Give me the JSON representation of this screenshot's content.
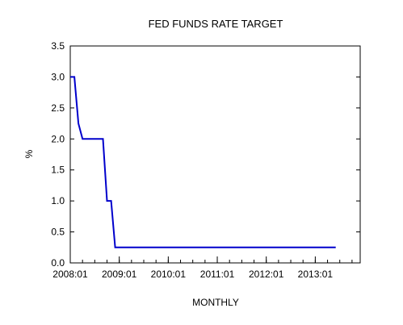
{
  "chart_data": {
    "type": "line",
    "title": "FED FUNDS RATE TARGET",
    "xlabel": "MONTHLY",
    "ylabel": "%",
    "ylim": [
      0,
      3.5
    ],
    "yticks": [
      "0.0",
      "0.5",
      "1.0",
      "1.5",
      "2.0",
      "2.5",
      "3.0",
      "3.5"
    ],
    "xlim": [
      "2008-01",
      "2013-12"
    ],
    "xticks": [
      "2008:01",
      "2009:01",
      "2010:01",
      "2011:01",
      "2012:01",
      "2013:01"
    ],
    "grid": false,
    "series": [
      {
        "color": "#0000cc",
        "points": [
          [
            "2008-01",
            3.0
          ],
          [
            "2008-02",
            3.0
          ],
          [
            "2008-03",
            2.25
          ],
          [
            "2008-04",
            2.0
          ],
          [
            "2008-05",
            2.0
          ],
          [
            "2008-09",
            2.0
          ],
          [
            "2008-10",
            1.0
          ],
          [
            "2008-11",
            1.0
          ],
          [
            "2008-12",
            0.25
          ],
          [
            "2013-06",
            0.25
          ]
        ]
      }
    ]
  }
}
